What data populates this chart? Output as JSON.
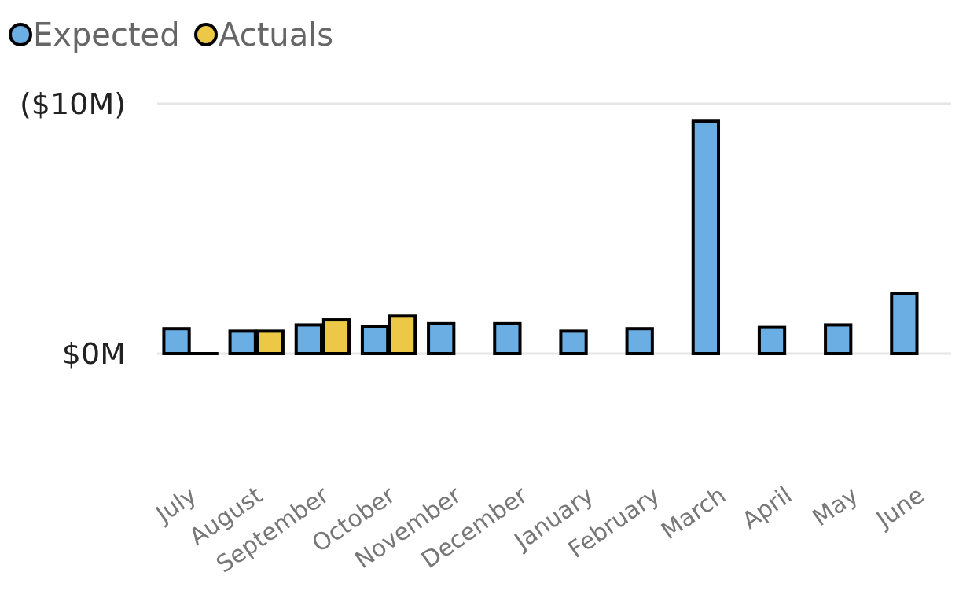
{
  "chart_data": {
    "type": "bar",
    "categories": [
      "July",
      "August",
      "September",
      "October",
      "November",
      "December",
      "January",
      "February",
      "March",
      "April",
      "May",
      "June"
    ],
    "series": [
      {
        "name": "Expected",
        "color": "#6aaee3",
        "values": [
          1.0,
          0.9,
          1.15,
          1.1,
          1.2,
          1.2,
          0.9,
          1.0,
          9.3,
          1.05,
          1.15,
          2.4
        ]
      },
      {
        "name": "Actuals",
        "color": "#ecc846",
        "values": [
          0,
          0.9,
          1.35,
          1.5,
          null,
          null,
          null,
          null,
          null,
          null,
          null,
          null
        ]
      }
    ],
    "ylim": [
      0,
      10
    ],
    "yticks": [
      {
        "value": 0,
        "label": "$0M"
      },
      {
        "value": 10,
        "label": "($10M)"
      }
    ],
    "grid": "y",
    "legend": "top left"
  }
}
